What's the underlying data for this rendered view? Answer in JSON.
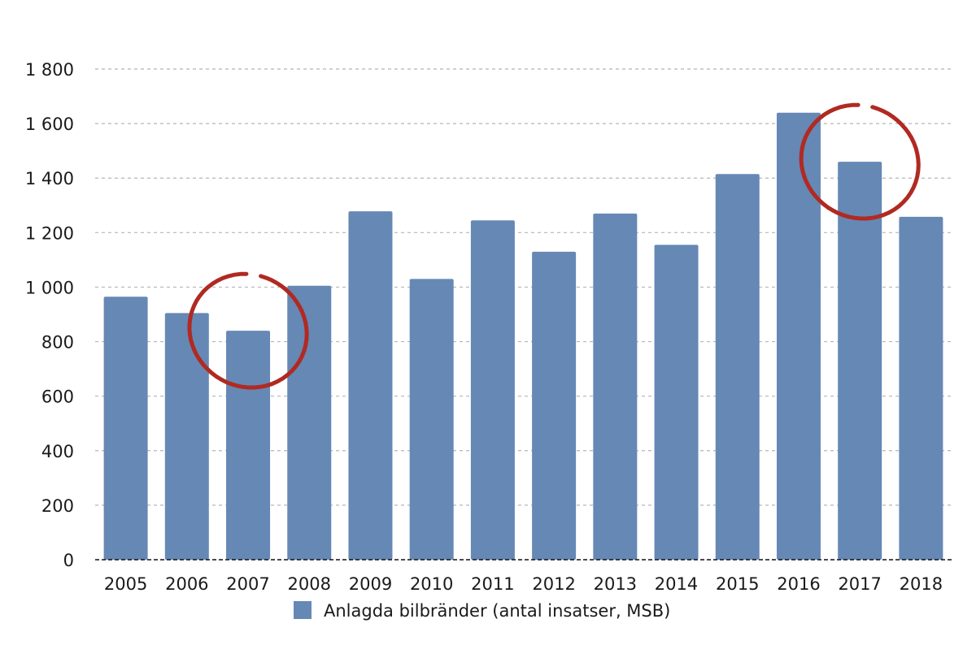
{
  "chart_data": {
    "type": "bar",
    "categories": [
      "2005",
      "2006",
      "2007",
      "2008",
      "2009",
      "2010",
      "2011",
      "2012",
      "2013",
      "2014",
      "2015",
      "2016",
      "2017",
      "2018"
    ],
    "series": [
      {
        "name": "Anlagda bilbränder (antal insatser, MSB)",
        "color": "#6688b5",
        "values": [
          965,
          905,
          840,
          1005,
          1278,
          1030,
          1245,
          1130,
          1270,
          1155,
          1415,
          1640,
          1460,
          1258
        ]
      }
    ],
    "ylim": [
      0,
      1800
    ],
    "yticks": [
      0,
      200,
      400,
      600,
      800,
      1000,
      1200,
      1400,
      1600,
      1800
    ],
    "ytick_labels": [
      "0",
      "200",
      "400",
      "600",
      "800",
      "1 000",
      "1 200",
      "1 400",
      "1 600",
      "1 800"
    ],
    "grid": true,
    "legend_position": "bottom-center",
    "highlighted_categories": [
      "2007",
      "2017"
    ],
    "highlight_color": "#b02a22"
  }
}
